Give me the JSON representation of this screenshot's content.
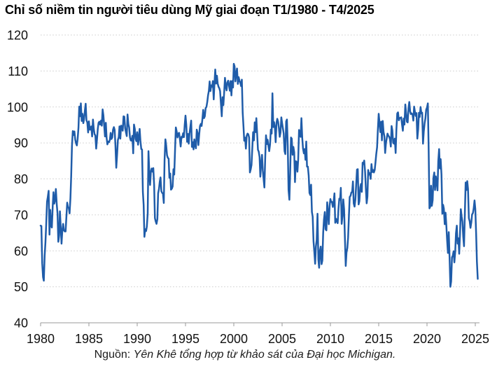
{
  "source": {
    "prefix": "Nguồn:",
    "text": "Yên Khê tổng hợp từ khảo sát của Đại học Michigan."
  },
  "colors": {
    "line": "#1f5ca9",
    "grid": "#cbcbcb",
    "axis": "#9a9a9a",
    "text": "#111111"
  },
  "chart_data": {
    "type": "line",
    "title": "Chỉ số niềm tin người tiêu dùng Mỹ giai đoạn T1/1980 - T4/2025",
    "xlabel": "",
    "ylabel": "",
    "legend": "none",
    "grid": "horizontal-dotted",
    "x_start": "1980-01",
    "x_end": "2025-04",
    "frequency": "monthly",
    "xlim": [
      1980,
      2025.33
    ],
    "ylim": [
      40,
      120
    ],
    "x_ticks": [
      1980,
      1985,
      1990,
      1995,
      2000,
      2005,
      2010,
      2015,
      2020,
      2025
    ],
    "y_ticks": [
      40,
      50,
      60,
      70,
      80,
      90,
      100,
      110,
      120
    ],
    "values": [
      67.0,
      66.9,
      56.5,
      52.7,
      51.7,
      58.7,
      62.3,
      67.3,
      73.7,
      75.0,
      76.7,
      64.5,
      71.4,
      66.9,
      66.5,
      72.4,
      76.3,
      73.1,
      74.1,
      77.2,
      73.1,
      70.3,
      62.5,
      64.3,
      71.0,
      66.5,
      62.0,
      65.5,
      67.5,
      65.7,
      65.4,
      65.4,
      69.3,
      73.4,
      72.1,
      71.9,
      70.4,
      74.6,
      80.8,
      89.1,
      93.3,
      92.2,
      93.2,
      90.9,
      89.9,
      89.3,
      91.1,
      94.2,
      100.1,
      97.4,
      101.0,
      96.1,
      98.1,
      95.5,
      96.6,
      99.1,
      100.9,
      96.3,
      95.7,
      92.9,
      96.0,
      93.7,
      93.7,
      94.6,
      91.8,
      96.5,
      94.0,
      92.4,
      92.1,
      88.4,
      90.9,
      93.9,
      95.6,
      95.9,
      95.1,
      96.2,
      94.8,
      99.3,
      97.7,
      94.9,
      91.8,
      95.6,
      91.4,
      89.6,
      90.4,
      90.2,
      90.8,
      92.8,
      91.1,
      91.5,
      93.7,
      94.4,
      93.6,
      89.3,
      83.1,
      86.8,
      90.8,
      91.6,
      94.6,
      91.2,
      94.8,
      94.7,
      93.4,
      97.4,
      97.3,
      94.1,
      93.0,
      91.9,
      97.9,
      95.2,
      94.3,
      91.5,
      90.7,
      90.6,
      92.0,
      87.1,
      95.1,
      93.9,
      91.1,
      90.5,
      93.0,
      89.5,
      91.3,
      93.9,
      90.6,
      88.3,
      88.2,
      76.4,
      72.8,
      63.9,
      66.0,
      65.5,
      66.8,
      70.4,
      87.7,
      81.8,
      78.3,
      82.1,
      82.9,
      82.0,
      83.0,
      78.3,
      69.1,
      68.2,
      67.5,
      68.8,
      76.0,
      77.2,
      79.2,
      80.4,
      76.6,
      76.1,
      75.9,
      73.3,
      85.3,
      91.0,
      89.3,
      86.6,
      85.9,
      85.6,
      80.3,
      81.5,
      77.0,
      77.3,
      77.9,
      82.7,
      81.2,
      88.2,
      94.3,
      93.2,
      91.5,
      92.6,
      92.8,
      91.2,
      89.0,
      91.7,
      91.5,
      92.7,
      91.6,
      95.1,
      97.6,
      95.1,
      90.3,
      92.5,
      89.8,
      92.7,
      94.4,
      96.2,
      88.9,
      90.2,
      88.2,
      91.0,
      89.3,
      88.5,
      93.7,
      92.7,
      89.4,
      92.4,
      94.7,
      95.3,
      94.7,
      96.5,
      99.2,
      96.9,
      97.4,
      99.7,
      100.0,
      101.4,
      103.2,
      104.5,
      107.1,
      104.4,
      106.0,
      105.6,
      107.2,
      102.1,
      106.6,
      110.4,
      106.5,
      108.7,
      106.5,
      105.6,
      105.2,
      104.4,
      100.9,
      97.4,
      102.7,
      100.5,
      103.9,
      108.1,
      105.7,
      104.6,
      106.8,
      107.3,
      106.0,
      104.5,
      107.2,
      103.2,
      107.2,
      105.4,
      112.0,
      111.3,
      107.1,
      109.2,
      110.7,
      106.4,
      108.3,
      107.3,
      106.8,
      105.8,
      107.6,
      98.4,
      94.7,
      90.6,
      91.5,
      88.4,
      92.0,
      92.6,
      92.4,
      91.5,
      81.8,
      82.7,
      83.9,
      88.8,
      93.0,
      90.7,
      95.7,
      93.0,
      96.9,
      92.4,
      88.1,
      87.6,
      86.1,
      80.6,
      84.2,
      86.7,
      82.4,
      79.9,
      77.6,
      86.0,
      92.1,
      89.7,
      90.9,
      89.3,
      87.7,
      89.6,
      93.7,
      92.6,
      103.8,
      94.4,
      95.8,
      94.2,
      90.2,
      95.6,
      96.7,
      95.9,
      94.2,
      91.7,
      92.8,
      97.1,
      95.5,
      94.1,
      92.6,
      87.7,
      86.9,
      96.0,
      96.5,
      89.1,
      76.9,
      74.2,
      81.6,
      91.5,
      91.2,
      86.7,
      88.9,
      87.4,
      79.1,
      84.9,
      84.7,
      82.0,
      85.4,
      93.6,
      92.1,
      91.7,
      96.9,
      91.3,
      88.4,
      87.1,
      88.3,
      85.3,
      90.4,
      83.4,
      83.4,
      80.9,
      76.1,
      75.5,
      78.4,
      70.8,
      69.5,
      62.6,
      59.8,
      56.4,
      61.2,
      63.0,
      70.3,
      57.6,
      55.3,
      60.1,
      61.2,
      56.3,
      57.3,
      65.1,
      68.7,
      70.8,
      66.0,
      65.7,
      73.5,
      70.6,
      67.4,
      72.5,
      74.4,
      73.6,
      73.6,
      72.2,
      73.6,
      76.0,
      67.8,
      68.9,
      68.2,
      67.7,
      71.6,
      74.5,
      74.2,
      77.5,
      67.5,
      69.8,
      74.3,
      71.5,
      63.7,
      55.8,
      59.5,
      60.8,
      63.7,
      69.9,
      75.0,
      75.3,
      76.2,
      76.4,
      79.3,
      73.2,
      72.3,
      74.3,
      78.3,
      82.6,
      82.7,
      72.9,
      73.8,
      77.6,
      78.6,
      76.4,
      84.5,
      84.1,
      85.1,
      82.1,
      77.5,
      73.2,
      75.1,
      82.5,
      81.2,
      81.6,
      80.0,
      84.1,
      81.9,
      82.5,
      81.8,
      82.5,
      84.6,
      86.9,
      88.8,
      93.6,
      98.1,
      95.4,
      93.0,
      95.9,
      90.7,
      96.1,
      93.1,
      91.9,
      87.2,
      90.0,
      91.3,
      92.6,
      92.0,
      91.7,
      91.0,
      89.0,
      94.7,
      93.5,
      90.0,
      89.8,
      91.2,
      87.2,
      93.8,
      98.2,
      98.5,
      96.3,
      96.9,
      97.0,
      97.1,
      95.0,
      93.4,
      96.8,
      95.1,
      100.7,
      98.5,
      95.9,
      95.7,
      99.7,
      101.4,
      98.8,
      98.0,
      98.2,
      97.9,
      96.2,
      100.1,
      98.6,
      97.5,
      98.3,
      91.2,
      93.8,
      98.4,
      97.2,
      100.0,
      98.2,
      98.4,
      89.8,
      93.2,
      95.5,
      96.8,
      99.3,
      99.8,
      101.0,
      89.1,
      71.8,
      72.3,
      78.1,
      72.5,
      74.1,
      80.4,
      81.8,
      76.9,
      80.7,
      79.0,
      76.8,
      84.9,
      88.3,
      82.9,
      85.5,
      81.2,
      70.3,
      72.8,
      71.7,
      67.4,
      70.6,
      67.2,
      62.8,
      59.4,
      65.2,
      58.4,
      50.0,
      51.5,
      58.2,
      58.6,
      59.9,
      56.8,
      59.7,
      64.9,
      67.0,
      62.0,
      63.5,
      59.2,
      64.4,
      71.6,
      69.5,
      68.1,
      63.8,
      61.3,
      69.7,
      79.0,
      76.9,
      79.4,
      77.2,
      69.1,
      68.2,
      66.4,
      67.9,
      70.1,
      70.5,
      71.8,
      74.0,
      71.7,
      64.7,
      57.0,
      52.2
    ]
  }
}
